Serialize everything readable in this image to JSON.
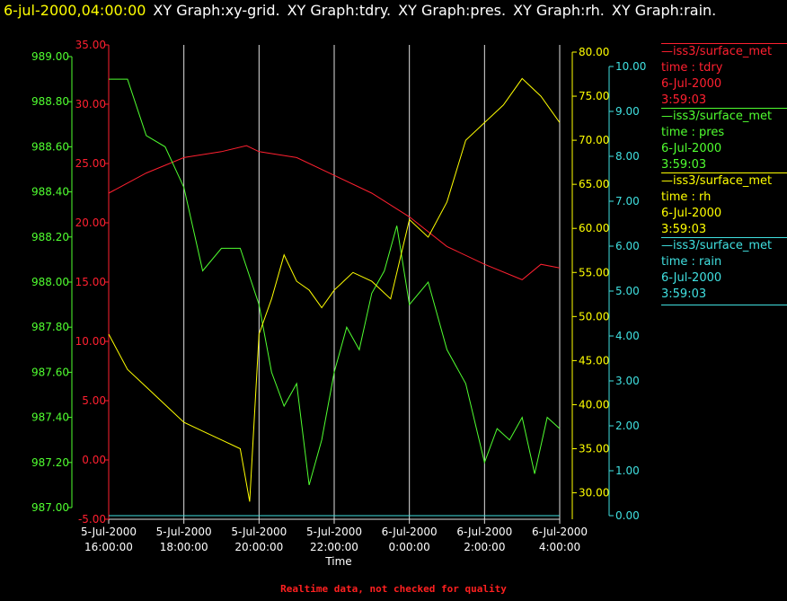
{
  "header": {
    "timestamp": "6-jul-2000,04:00:00",
    "titles": [
      "XY Graph:xy-grid.",
      "XY Graph:tdry.",
      "XY Graph:pres.",
      "XY Graph:rh.",
      "XY Graph:rain."
    ]
  },
  "footer": {
    "note": "Realtime data, not checked for quality"
  },
  "colors": {
    "tdry": "#ff2030",
    "pres": "#50ff30",
    "rh": "#ffff00",
    "rain": "#40e0e0",
    "grid": "#e0e0e0",
    "background": "#000000"
  },
  "legend": [
    {
      "key": "tdry",
      "source": "iss3/surface_met",
      "field": "time : tdry",
      "date": "6-Jul-2000",
      "time": "3:59:03"
    },
    {
      "key": "pres",
      "source": "iss3/surface_met",
      "field": "time : pres",
      "date": "6-Jul-2000",
      "time": "3:59:03"
    },
    {
      "key": "rh",
      "source": "iss3/surface_met",
      "field": "time : rh",
      "date": "6-Jul-2000",
      "time": "3:59:03"
    },
    {
      "key": "rain",
      "source": "iss3/surface_met",
      "field": "time : rain",
      "date": "6-Jul-2000",
      "time": "3:59:03"
    }
  ],
  "chart_data": {
    "type": "line",
    "xlabel": "Time",
    "xlim": [
      "2000-07-05 16:00",
      "2000-07-06 04:00"
    ],
    "x_ticks": [
      {
        "date": "5-Jul-2000",
        "time": "16:00:00"
      },
      {
        "date": "5-Jul-2000",
        "time": "18:00:00"
      },
      {
        "date": "5-Jul-2000",
        "time": "20:00:00"
      },
      {
        "date": "5-Jul-2000",
        "time": "22:00:00"
      },
      {
        "date": "6-Jul-2000",
        "time": "0:00:00"
      },
      {
        "date": "6-Jul-2000",
        "time": "2:00:00"
      },
      {
        "date": "6-Jul-2000",
        "time": "4:00:00"
      }
    ],
    "grid": "vertical",
    "axes": {
      "pres": {
        "side": "left-outer",
        "ylim": [
          987.0,
          989.0
        ],
        "ticks": [
          "987.00",
          "987.20",
          "987.40",
          "987.60",
          "987.80",
          "988.00",
          "988.20",
          "988.40",
          "988.60",
          "988.80",
          "989.00"
        ]
      },
      "tdry": {
        "side": "left-inner",
        "ylim": [
          -5.0,
          35.0
        ],
        "ticks": [
          "-5.00",
          "0.00",
          "5.00",
          "10.00",
          "15.00",
          "20.00",
          "25.00",
          "30.00",
          "35.00"
        ]
      },
      "rh": {
        "side": "right-inner",
        "ylim": [
          27.0,
          80.0
        ],
        "ticks": [
          "30.00",
          "35.00",
          "40.00",
          "45.00",
          "50.00",
          "55.00",
          "60.00",
          "65.00",
          "70.00",
          "75.00",
          "80.00"
        ]
      },
      "rain": {
        "side": "right-outer",
        "ylim": [
          0.0,
          10.0
        ],
        "ticks": [
          "0.00",
          "1.00",
          "2.00",
          "3.00",
          "4.00",
          "5.00",
          "6.00",
          "7.00",
          "8.00",
          "9.00",
          "10.00"
        ]
      }
    },
    "series": [
      {
        "name": "iss3/surface_met time : tdry",
        "axis": "tdry",
        "x": [
          "2000-07-05 16:00",
          "2000-07-05 17:00",
          "2000-07-05 18:00",
          "2000-07-05 19:00",
          "2000-07-05 19:40",
          "2000-07-05 20:00",
          "2000-07-05 21:00",
          "2000-07-05 22:00",
          "2000-07-05 23:00",
          "2000-07-06 00:00",
          "2000-07-06 01:00",
          "2000-07-06 02:00",
          "2000-07-06 03:00",
          "2000-07-06 03:30",
          "2000-07-06 04:00"
        ],
        "values": [
          22.5,
          24.2,
          25.5,
          26.0,
          26.5,
          26.0,
          25.5,
          24.0,
          22.5,
          20.5,
          18.0,
          16.5,
          15.2,
          16.5,
          16.2
        ]
      },
      {
        "name": "iss3/surface_met time : pres",
        "axis": "pres",
        "x": [
          "2000-07-05 16:00",
          "2000-07-05 16:30",
          "2000-07-05 17:00",
          "2000-07-05 17:30",
          "2000-07-05 18:00",
          "2000-07-05 18:30",
          "2000-07-05 19:00",
          "2000-07-05 19:30",
          "2000-07-05 20:00",
          "2000-07-05 20:20",
          "2000-07-05 20:40",
          "2000-07-05 21:00",
          "2000-07-05 21:20",
          "2000-07-05 21:40",
          "2000-07-05 22:00",
          "2000-07-05 22:20",
          "2000-07-05 22:40",
          "2000-07-05 23:00",
          "2000-07-05 23:20",
          "2000-07-05 23:40",
          "2000-07-06 00:00",
          "2000-07-06 00:30",
          "2000-07-06 01:00",
          "2000-07-06 01:30",
          "2000-07-06 02:00",
          "2000-07-06 02:20",
          "2000-07-06 02:40",
          "2000-07-06 03:00",
          "2000-07-06 03:20",
          "2000-07-06 03:40",
          "2000-07-06 04:00"
        ],
        "values": [
          988.9,
          988.9,
          988.65,
          988.6,
          988.42,
          988.05,
          988.15,
          988.15,
          987.9,
          987.6,
          987.45,
          987.55,
          987.1,
          987.3,
          987.6,
          987.8,
          987.7,
          987.95,
          988.05,
          988.25,
          987.9,
          988.0,
          987.7,
          987.55,
          987.2,
          987.35,
          987.3,
          987.4,
          987.15,
          987.4,
          987.35
        ]
      },
      {
        "name": "iss3/surface_met time : rh",
        "axis": "rh",
        "x": [
          "2000-07-05 16:00",
          "2000-07-05 16:30",
          "2000-07-05 17:00",
          "2000-07-05 17:30",
          "2000-07-05 18:00",
          "2000-07-05 18:30",
          "2000-07-05 19:00",
          "2000-07-05 19:30",
          "2000-07-05 19:45",
          "2000-07-05 20:00",
          "2000-07-05 20:20",
          "2000-07-05 20:40",
          "2000-07-05 21:00",
          "2000-07-05 21:20",
          "2000-07-05 21:40",
          "2000-07-05 22:00",
          "2000-07-05 22:30",
          "2000-07-05 23:00",
          "2000-07-05 23:30",
          "2000-07-06 00:00",
          "2000-07-06 00:30",
          "2000-07-06 01:00",
          "2000-07-06 01:30",
          "2000-07-06 02:00",
          "2000-07-06 02:30",
          "2000-07-06 03:00",
          "2000-07-06 03:30",
          "2000-07-06 04:00"
        ],
        "values": [
          48,
          44,
          42,
          40,
          38,
          37,
          36,
          35,
          29,
          48,
          52,
          57,
          54,
          53,
          51,
          53,
          55,
          54,
          52,
          61,
          59,
          63,
          70,
          72,
          74,
          77,
          75,
          72
        ]
      },
      {
        "name": "iss3/surface_met time : rain",
        "axis": "rain",
        "x": [
          "2000-07-05 16:00",
          "2000-07-06 04:00"
        ],
        "values": [
          0.0,
          0.0
        ]
      }
    ]
  }
}
